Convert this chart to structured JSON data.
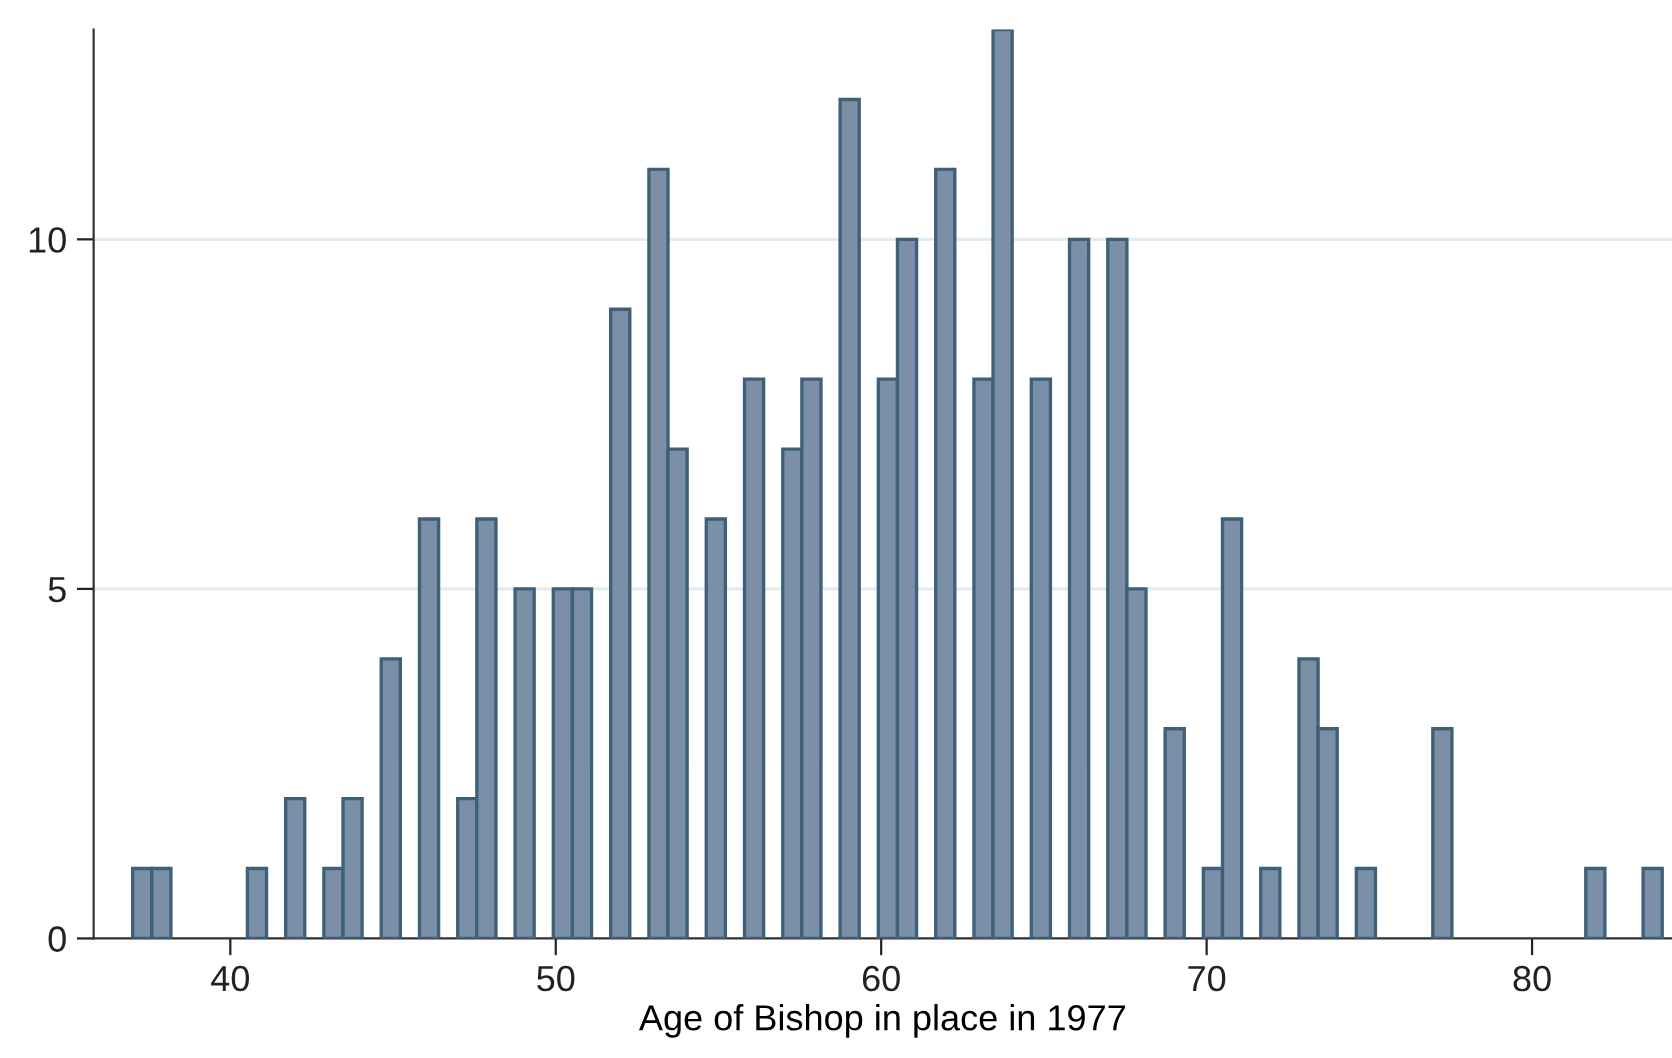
{
  "chart_data": {
    "type": "histogram",
    "xlabel": "Age of Bishop in place in 1977",
    "bins": [
      37,
      37.5875,
      38.175,
      38.7625,
      39.35,
      39.9375,
      40.525,
      41.1125,
      41.7,
      42.2875,
      42.875,
      43.4625,
      44.05,
      44.6375,
      45.225,
      45.8125,
      46.4,
      46.9875,
      47.575,
      48.1625,
      48.75,
      49.3375,
      49.925,
      50.5125,
      51.1,
      51.6875,
      52.275,
      52.8625,
      53.45,
      54.0375,
      54.625,
      55.2125,
      55.8,
      56.3875,
      56.975,
      57.5625,
      58.15,
      58.7375,
      59.325,
      59.9125,
      60.5,
      61.0875,
      61.675,
      62.2625,
      62.85,
      63.4375,
      64.025,
      64.6125,
      65.2,
      65.7875,
      66.375,
      66.9625,
      67.55,
      68.1375,
      68.725,
      69.3125,
      69.9,
      70.4875,
      71.075,
      71.6625,
      72.25,
      72.8375,
      73.425,
      74.0125,
      74.6,
      75.1875,
      75.775,
      76.3625,
      76.95,
      77.5375,
      78.125,
      78.7125,
      79.3,
      79.8875,
      80.475,
      81.0625,
      81.65,
      82.2375,
      82.825,
      83.4125,
      84
    ],
    "values": [
      1,
      1,
      0,
      0,
      0,
      0,
      1,
      0,
      2,
      0,
      1,
      2,
      0,
      4,
      0,
      6,
      0,
      2,
      6,
      0,
      5,
      0,
      5,
      5,
      0,
      9,
      0,
      11,
      7,
      0,
      6,
      0,
      8,
      0,
      7,
      8,
      0,
      12,
      0,
      8,
      10,
      0,
      11,
      0,
      8,
      13,
      0,
      8,
      0,
      10,
      0,
      10,
      5,
      0,
      3,
      0,
      1,
      6,
      0,
      1,
      0,
      4,
      3,
      0,
      1,
      0,
      0,
      0,
      3,
      0,
      0,
      0,
      0,
      0,
      0,
      0,
      1,
      0,
      0,
      1
    ],
    "color": "#7b8fa7",
    "xlim": [
      35.8,
      84.3
    ],
    "ylim": [
      0,
      13
    ],
    "xticks": [
      40,
      50,
      60,
      70,
      80
    ],
    "yticks": [
      0,
      5,
      10
    ],
    "grid": "y",
    "legend": false
  }
}
